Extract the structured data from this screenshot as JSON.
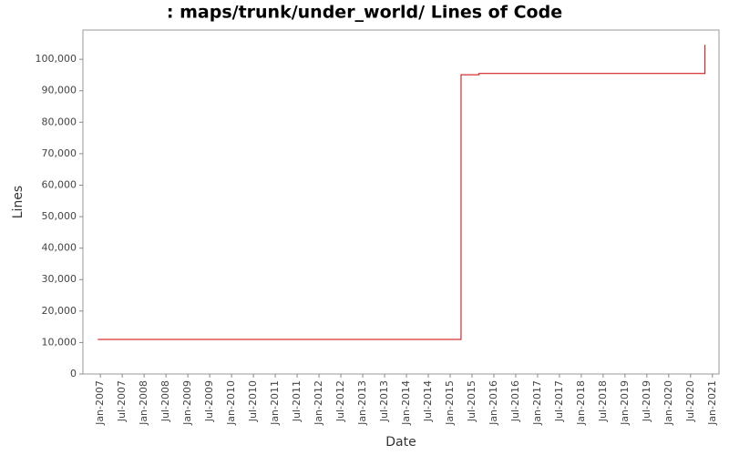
{
  "chart_data": {
    "type": "line",
    "title": ": maps/trunk/under_world/ Lines of Code",
    "x_label": "Date",
    "y_label": "Lines",
    "x": [
      2006.94,
      2015.25,
      2015.25,
      2015.66,
      2015.66,
      2020.83,
      2020.83
    ],
    "series": [
      {
        "name": "Lines",
        "color": "#cc0000",
        "values": [
          11000,
          11000,
          95100,
          95100,
          95500,
          95500,
          104600
        ]
      }
    ],
    "xlim": [
      2006.6,
      2021.15
    ],
    "xticks": [
      {
        "value": 2007,
        "label": "Jan-2007"
      },
      {
        "value": 2007.5,
        "label": "Jul-2007"
      },
      {
        "value": 2008,
        "label": "Jan-2008"
      },
      {
        "value": 2008.5,
        "label": "Jul-2008"
      },
      {
        "value": 2009,
        "label": "Jan-2009"
      },
      {
        "value": 2009.5,
        "label": "Jul-2009"
      },
      {
        "value": 2010,
        "label": "Jan-2010"
      },
      {
        "value": 2010.5,
        "label": "Jul-2010"
      },
      {
        "value": 2011,
        "label": "Jan-2011"
      },
      {
        "value": 2011.5,
        "label": "Jul-2011"
      },
      {
        "value": 2012,
        "label": "Jan-2012"
      },
      {
        "value": 2012.5,
        "label": "Jul-2012"
      },
      {
        "value": 2013,
        "label": "Jan-2013"
      },
      {
        "value": 2013.5,
        "label": "Jul-2013"
      },
      {
        "value": 2014,
        "label": "Jan-2014"
      },
      {
        "value": 2014.5,
        "label": "Jul-2014"
      },
      {
        "value": 2015,
        "label": "Jan-2015"
      },
      {
        "value": 2015.5,
        "label": "Jul-2015"
      },
      {
        "value": 2016,
        "label": "Jan-2016"
      },
      {
        "value": 2016.5,
        "label": "Jul-2016"
      },
      {
        "value": 2017,
        "label": "Jan-2017"
      },
      {
        "value": 2017.5,
        "label": "Jul-2017"
      },
      {
        "value": 2018,
        "label": "Jan-2018"
      },
      {
        "value": 2018.5,
        "label": "Jul-2018"
      },
      {
        "value": 2019,
        "label": "Jan-2019"
      },
      {
        "value": 2019.5,
        "label": "Jul-2019"
      },
      {
        "value": 2020,
        "label": "Jan-2020"
      },
      {
        "value": 2020.5,
        "label": "Jul-2020"
      },
      {
        "value": 2021,
        "label": "Jan-2021"
      }
    ],
    "ylim": [
      0,
      109300
    ],
    "yticks": [
      0,
      {
        "value": 10000,
        "label": "10,000"
      },
      {
        "value": 20000,
        "label": "20,000"
      },
      {
        "value": 30000,
        "label": "30,000"
      },
      {
        "value": 40000,
        "label": "40,000"
      },
      {
        "value": 50000,
        "label": "50,000"
      },
      {
        "value": 60000,
        "label": "60,000"
      },
      {
        "value": 70000,
        "label": "70,000"
      },
      {
        "value": 80000,
        "label": "80,000"
      },
      {
        "value": 90000,
        "label": "90,000"
      },
      {
        "value": 100000,
        "label": "100,000"
      }
    ],
    "grid": false
  }
}
